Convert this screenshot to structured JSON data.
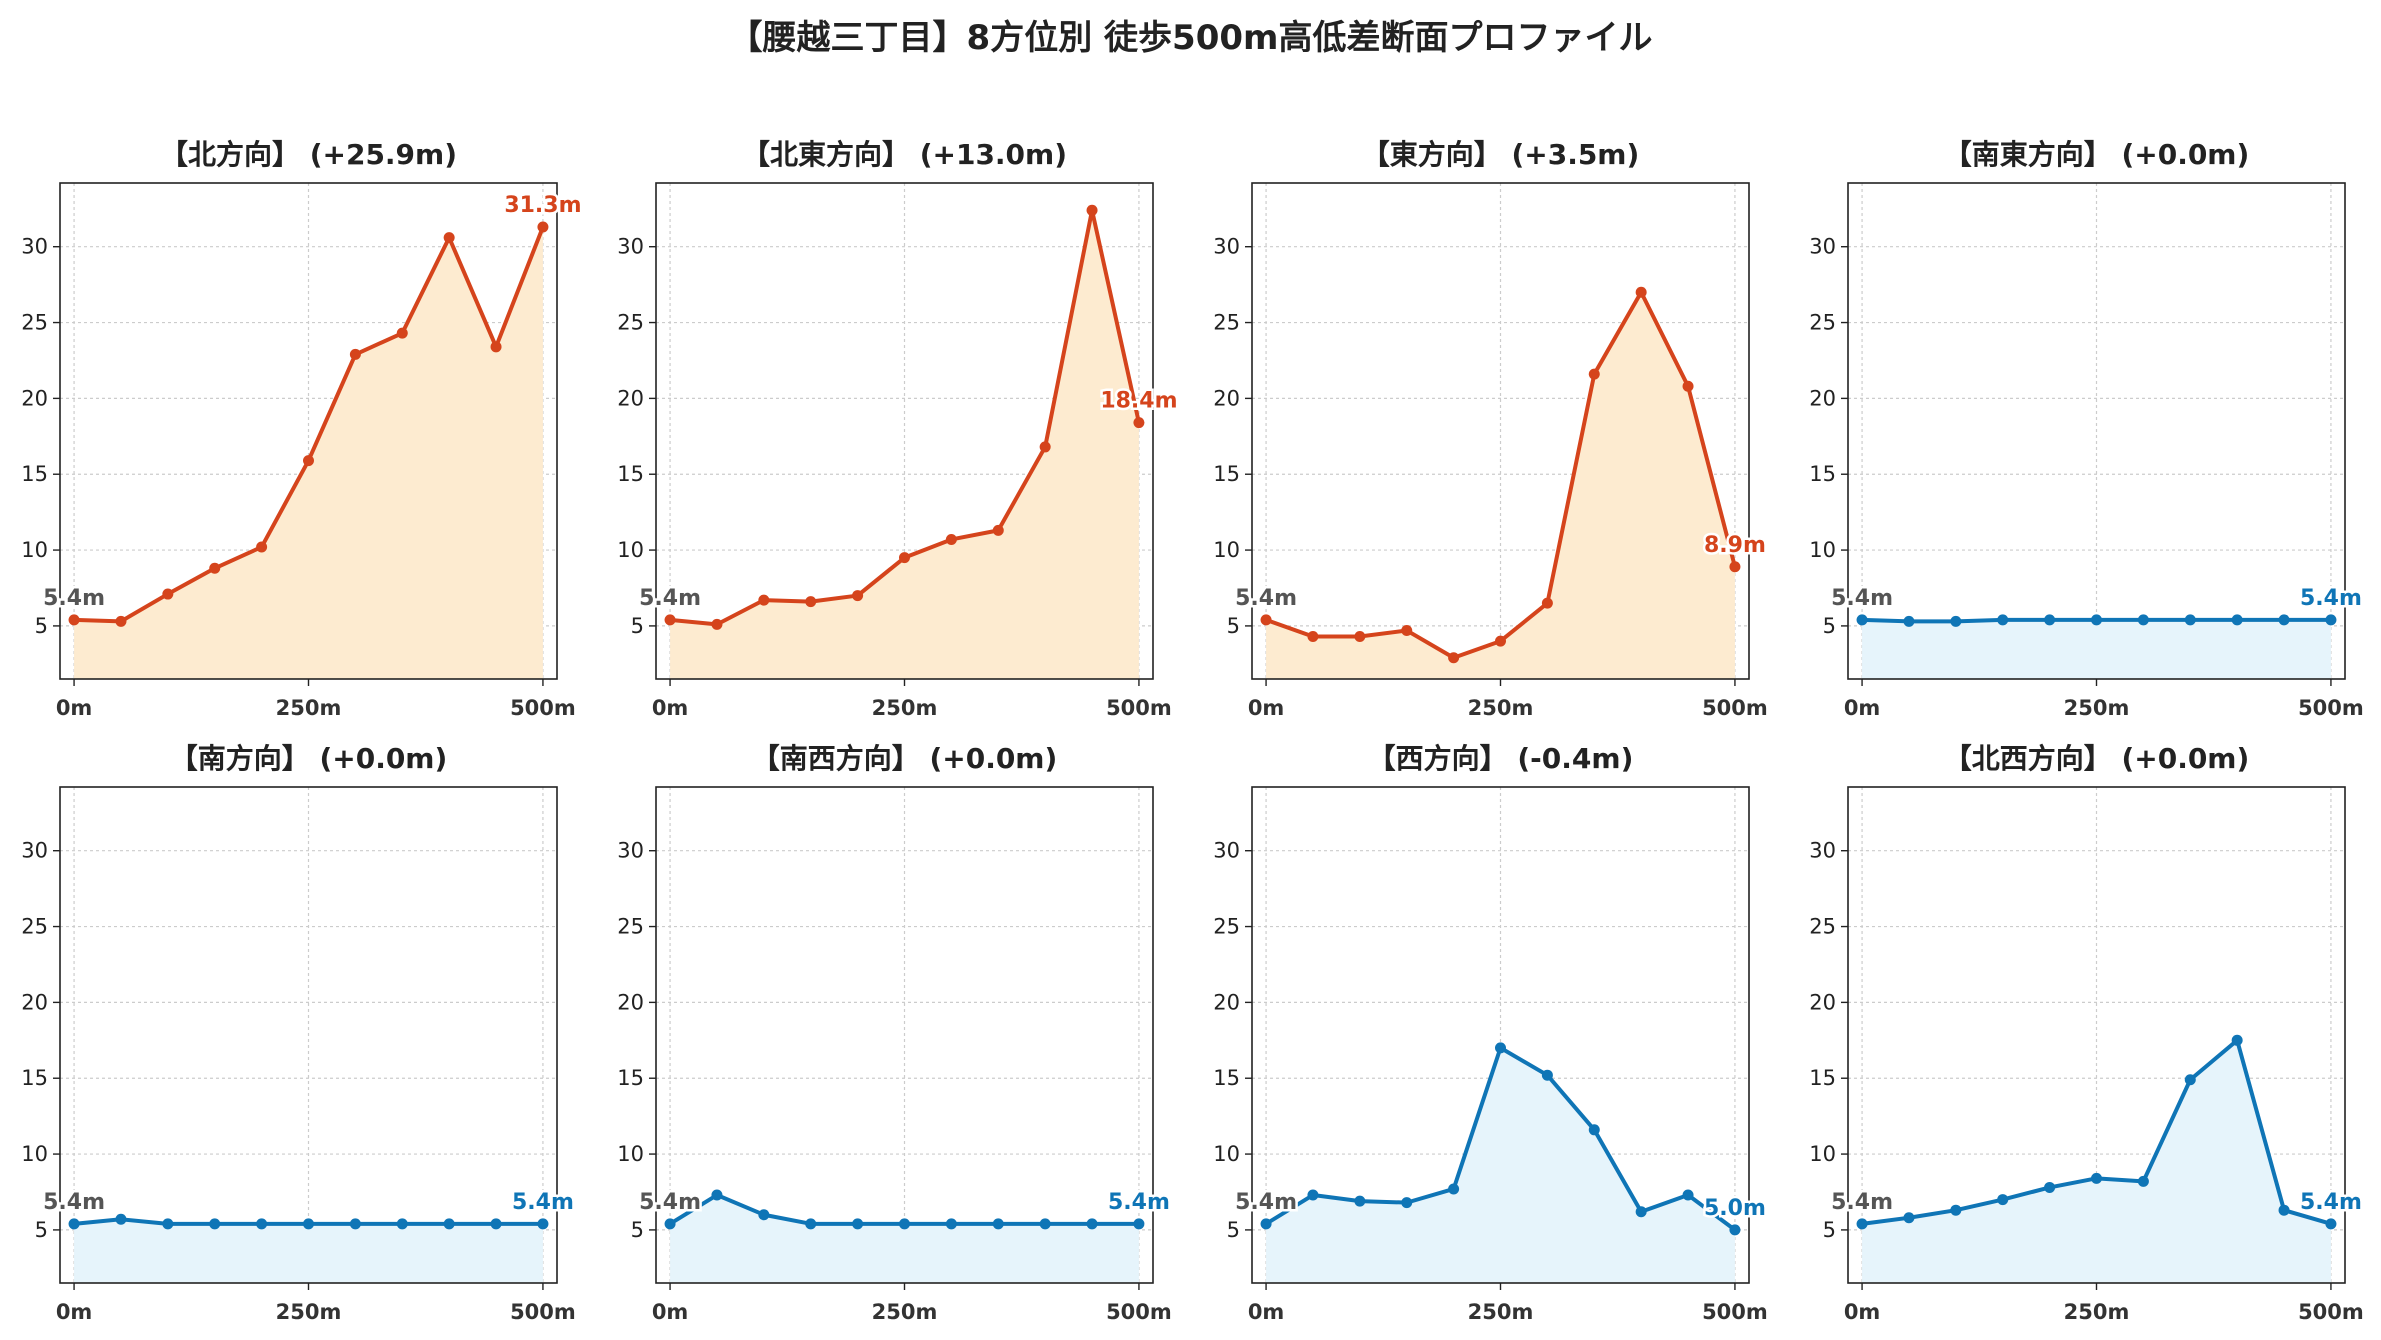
{
  "suptitle": "【腰越三丁目】8方位別 徒歩500m高低差断面プロファイル",
  "colors": {
    "up_line": "#d5441c",
    "up_fill": "#fdebd0",
    "down_line": "#0f75b6",
    "down_fill": "#e6f4fb",
    "start_label": "#555555",
    "grid": "#cccccc",
    "axis": "#222222"
  },
  "chart_data": [
    {
      "type": "area",
      "title": "【北方向】 (+25.9m)",
      "trend": "up",
      "x": [
        0,
        50,
        100,
        150,
        200,
        250,
        300,
        350,
        400,
        450,
        500
      ],
      "y": [
        5.4,
        5.3,
        7.1,
        8.8,
        10.2,
        15.9,
        22.9,
        24.3,
        30.6,
        23.4,
        31.3
      ],
      "start_label": "5.4m",
      "end_label": "31.3m",
      "xticks": [
        0,
        250,
        500
      ],
      "xtick_labels": [
        "0m",
        "250m",
        "500m"
      ],
      "yticks": [
        5,
        10,
        15,
        20,
        25,
        30
      ],
      "xlim": [
        -15,
        515
      ],
      "ylim": [
        1.5,
        34.2
      ],
      "grid": true
    },
    {
      "type": "area",
      "title": "【北東方向】 (+13.0m)",
      "trend": "up",
      "x": [
        0,
        50,
        100,
        150,
        200,
        250,
        300,
        350,
        400,
        450,
        500
      ],
      "y": [
        5.4,
        5.1,
        6.7,
        6.6,
        7.0,
        9.5,
        10.7,
        11.3,
        16.8,
        32.4,
        18.4
      ],
      "start_label": "5.4m",
      "end_label": "18.4m",
      "xticks": [
        0,
        250,
        500
      ],
      "xtick_labels": [
        "0m",
        "250m",
        "500m"
      ],
      "yticks": [
        5,
        10,
        15,
        20,
        25,
        30
      ],
      "xlim": [
        -15,
        515
      ],
      "ylim": [
        1.5,
        34.2
      ],
      "grid": true
    },
    {
      "type": "area",
      "title": "【東方向】 (+3.5m)",
      "trend": "up",
      "x": [
        0,
        50,
        100,
        150,
        200,
        250,
        300,
        350,
        400,
        450,
        500
      ],
      "y": [
        5.4,
        4.3,
        4.3,
        4.7,
        2.9,
        4.0,
        6.5,
        21.6,
        27.0,
        20.8,
        8.9
      ],
      "start_label": "5.4m",
      "end_label": "8.9m",
      "xticks": [
        0,
        250,
        500
      ],
      "xtick_labels": [
        "0m",
        "250m",
        "500m"
      ],
      "yticks": [
        5,
        10,
        15,
        20,
        25,
        30
      ],
      "xlim": [
        -15,
        515
      ],
      "ylim": [
        1.5,
        34.2
      ],
      "grid": true
    },
    {
      "type": "area",
      "title": "【南東方向】 (+0.0m)",
      "trend": "flat",
      "x": [
        0,
        50,
        100,
        150,
        200,
        250,
        300,
        350,
        400,
        450,
        500
      ],
      "y": [
        5.4,
        5.3,
        5.3,
        5.4,
        5.4,
        5.4,
        5.4,
        5.4,
        5.4,
        5.4,
        5.4
      ],
      "start_label": "5.4m",
      "end_label": "5.4m",
      "xticks": [
        0,
        250,
        500
      ],
      "xtick_labels": [
        "0m",
        "250m",
        "500m"
      ],
      "yticks": [
        5,
        10,
        15,
        20,
        25,
        30
      ],
      "xlim": [
        -15,
        515
      ],
      "ylim": [
        1.5,
        34.2
      ],
      "grid": true
    },
    {
      "type": "area",
      "title": "【南方向】 (+0.0m)",
      "trend": "flat",
      "x": [
        0,
        50,
        100,
        150,
        200,
        250,
        300,
        350,
        400,
        450,
        500
      ],
      "y": [
        5.4,
        5.7,
        5.4,
        5.4,
        5.4,
        5.4,
        5.4,
        5.4,
        5.4,
        5.4,
        5.4
      ],
      "start_label": "5.4m",
      "end_label": "5.4m",
      "xticks": [
        0,
        250,
        500
      ],
      "xtick_labels": [
        "0m",
        "250m",
        "500m"
      ],
      "yticks": [
        5,
        10,
        15,
        20,
        25,
        30
      ],
      "xlim": [
        -15,
        515
      ],
      "ylim": [
        1.5,
        34.2
      ],
      "grid": true
    },
    {
      "type": "area",
      "title": "【南西方向】 (+0.0m)",
      "trend": "flat",
      "x": [
        0,
        50,
        100,
        150,
        200,
        250,
        300,
        350,
        400,
        450,
        500
      ],
      "y": [
        5.4,
        7.3,
        6.0,
        5.4,
        5.4,
        5.4,
        5.4,
        5.4,
        5.4,
        5.4,
        5.4
      ],
      "start_label": "5.4m",
      "end_label": "5.4m",
      "xticks": [
        0,
        250,
        500
      ],
      "xtick_labels": [
        "0m",
        "250m",
        "500m"
      ],
      "yticks": [
        5,
        10,
        15,
        20,
        25,
        30
      ],
      "xlim": [
        -15,
        515
      ],
      "ylim": [
        1.5,
        34.2
      ],
      "grid": true
    },
    {
      "type": "area",
      "title": "【西方向】 (-0.4m)",
      "trend": "down",
      "x": [
        0,
        50,
        100,
        150,
        200,
        250,
        300,
        350,
        400,
        450,
        500
      ],
      "y": [
        5.4,
        7.3,
        6.9,
        6.8,
        7.7,
        17.0,
        15.2,
        11.6,
        6.2,
        7.3,
        5.0
      ],
      "start_label": "5.4m",
      "end_label": "5.0m",
      "xticks": [
        0,
        250,
        500
      ],
      "xtick_labels": [
        "0m",
        "250m",
        "500m"
      ],
      "yticks": [
        5,
        10,
        15,
        20,
        25,
        30
      ],
      "xlim": [
        -15,
        515
      ],
      "ylim": [
        1.5,
        34.2
      ],
      "grid": true
    },
    {
      "type": "area",
      "title": "【北西方向】 (+0.0m)",
      "trend": "flat",
      "x": [
        0,
        50,
        100,
        150,
        200,
        250,
        300,
        350,
        400,
        450,
        500
      ],
      "y": [
        5.4,
        5.8,
        6.3,
        7.0,
        7.8,
        8.4,
        8.2,
        14.9,
        17.5,
        6.3,
        5.4
      ],
      "start_label": "5.4m",
      "end_label": "5.4m",
      "xticks": [
        0,
        250,
        500
      ],
      "xtick_labels": [
        "0m",
        "250m",
        "500m"
      ],
      "yticks": [
        5,
        10,
        15,
        20,
        25,
        30
      ],
      "xlim": [
        -15,
        515
      ],
      "ylim": [
        1.5,
        34.2
      ],
      "grid": true
    }
  ]
}
